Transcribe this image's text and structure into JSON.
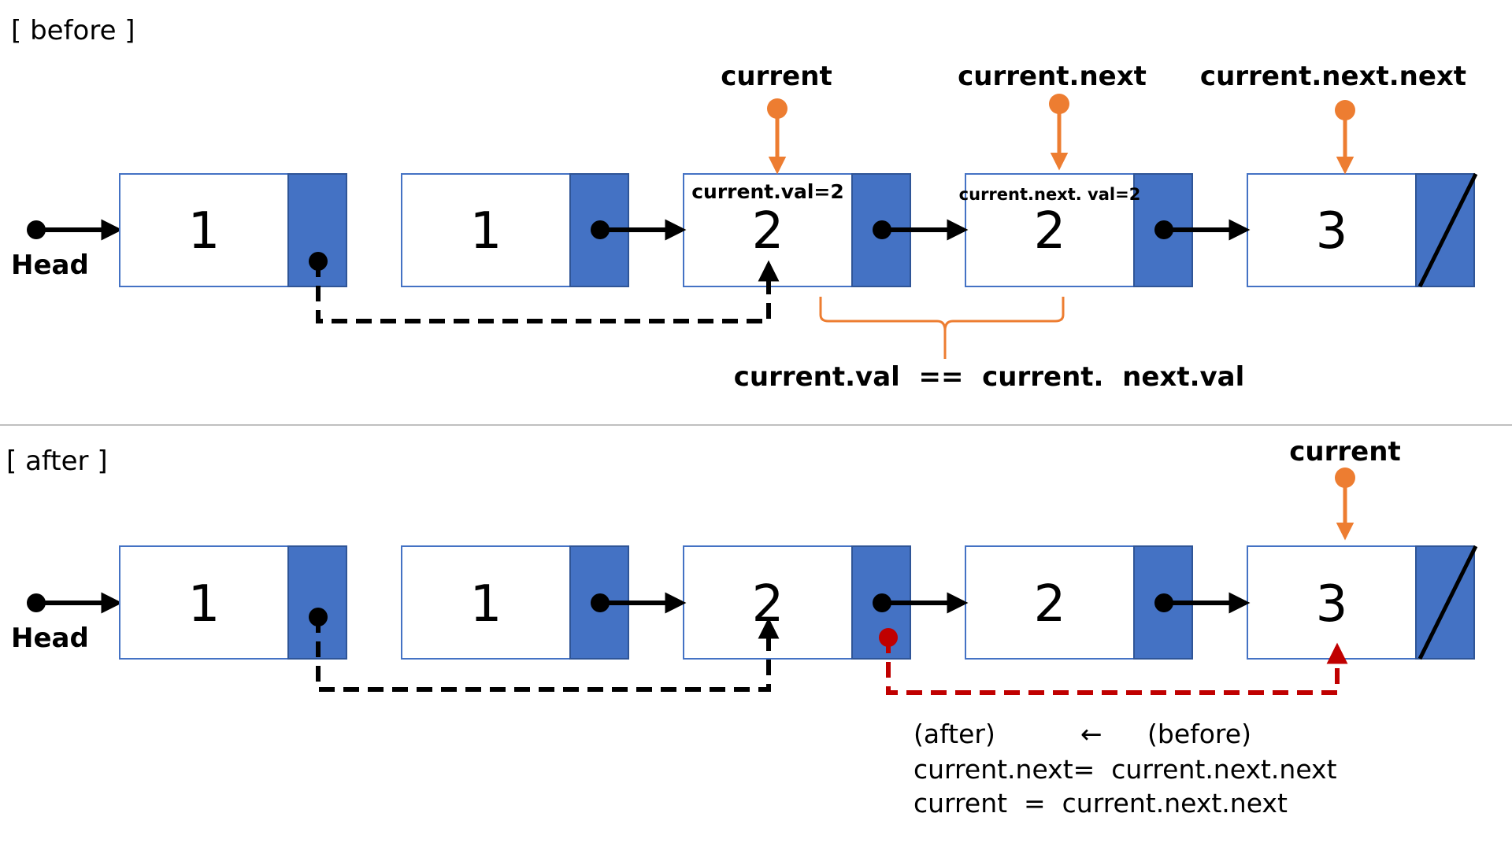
{
  "before": {
    "section_label": "[ before ]",
    "head_label": "Head",
    "nodes": [
      {
        "value": "1"
      },
      {
        "value": "1"
      },
      {
        "value": "2",
        "caption": "current.val=2"
      },
      {
        "value": "2",
        "caption": "current.next. val=2"
      },
      {
        "value": "3"
      }
    ],
    "pointers": [
      {
        "label": "current",
        "node": 2
      },
      {
        "label": "current.next",
        "node": 3
      },
      {
        "label": "current.next.next",
        "node": 4
      }
    ],
    "comparison": "current.val  ==  current.  next.val"
  },
  "after": {
    "section_label": "[ after ]",
    "head_label": "Head",
    "nodes": [
      {
        "value": "1"
      },
      {
        "value": "1"
      },
      {
        "value": "2"
      },
      {
        "value": "2"
      },
      {
        "value": "3"
      }
    ],
    "pointers": [
      {
        "label": "current",
        "node": 4
      }
    ],
    "notes": {
      "header_after": "(after)",
      "header_arrow": "←",
      "header_before": "(before)",
      "line1": "current.next=  current.next.next",
      "line2": "current  =  current.next.next"
    }
  },
  "colors": {
    "node_border": "#4472c4",
    "pointer_cell": "#4472c4",
    "pointer_marker": "#ed7d31",
    "relink": "#c00000",
    "link": "#000000",
    "separator": "#bfbfbf"
  }
}
